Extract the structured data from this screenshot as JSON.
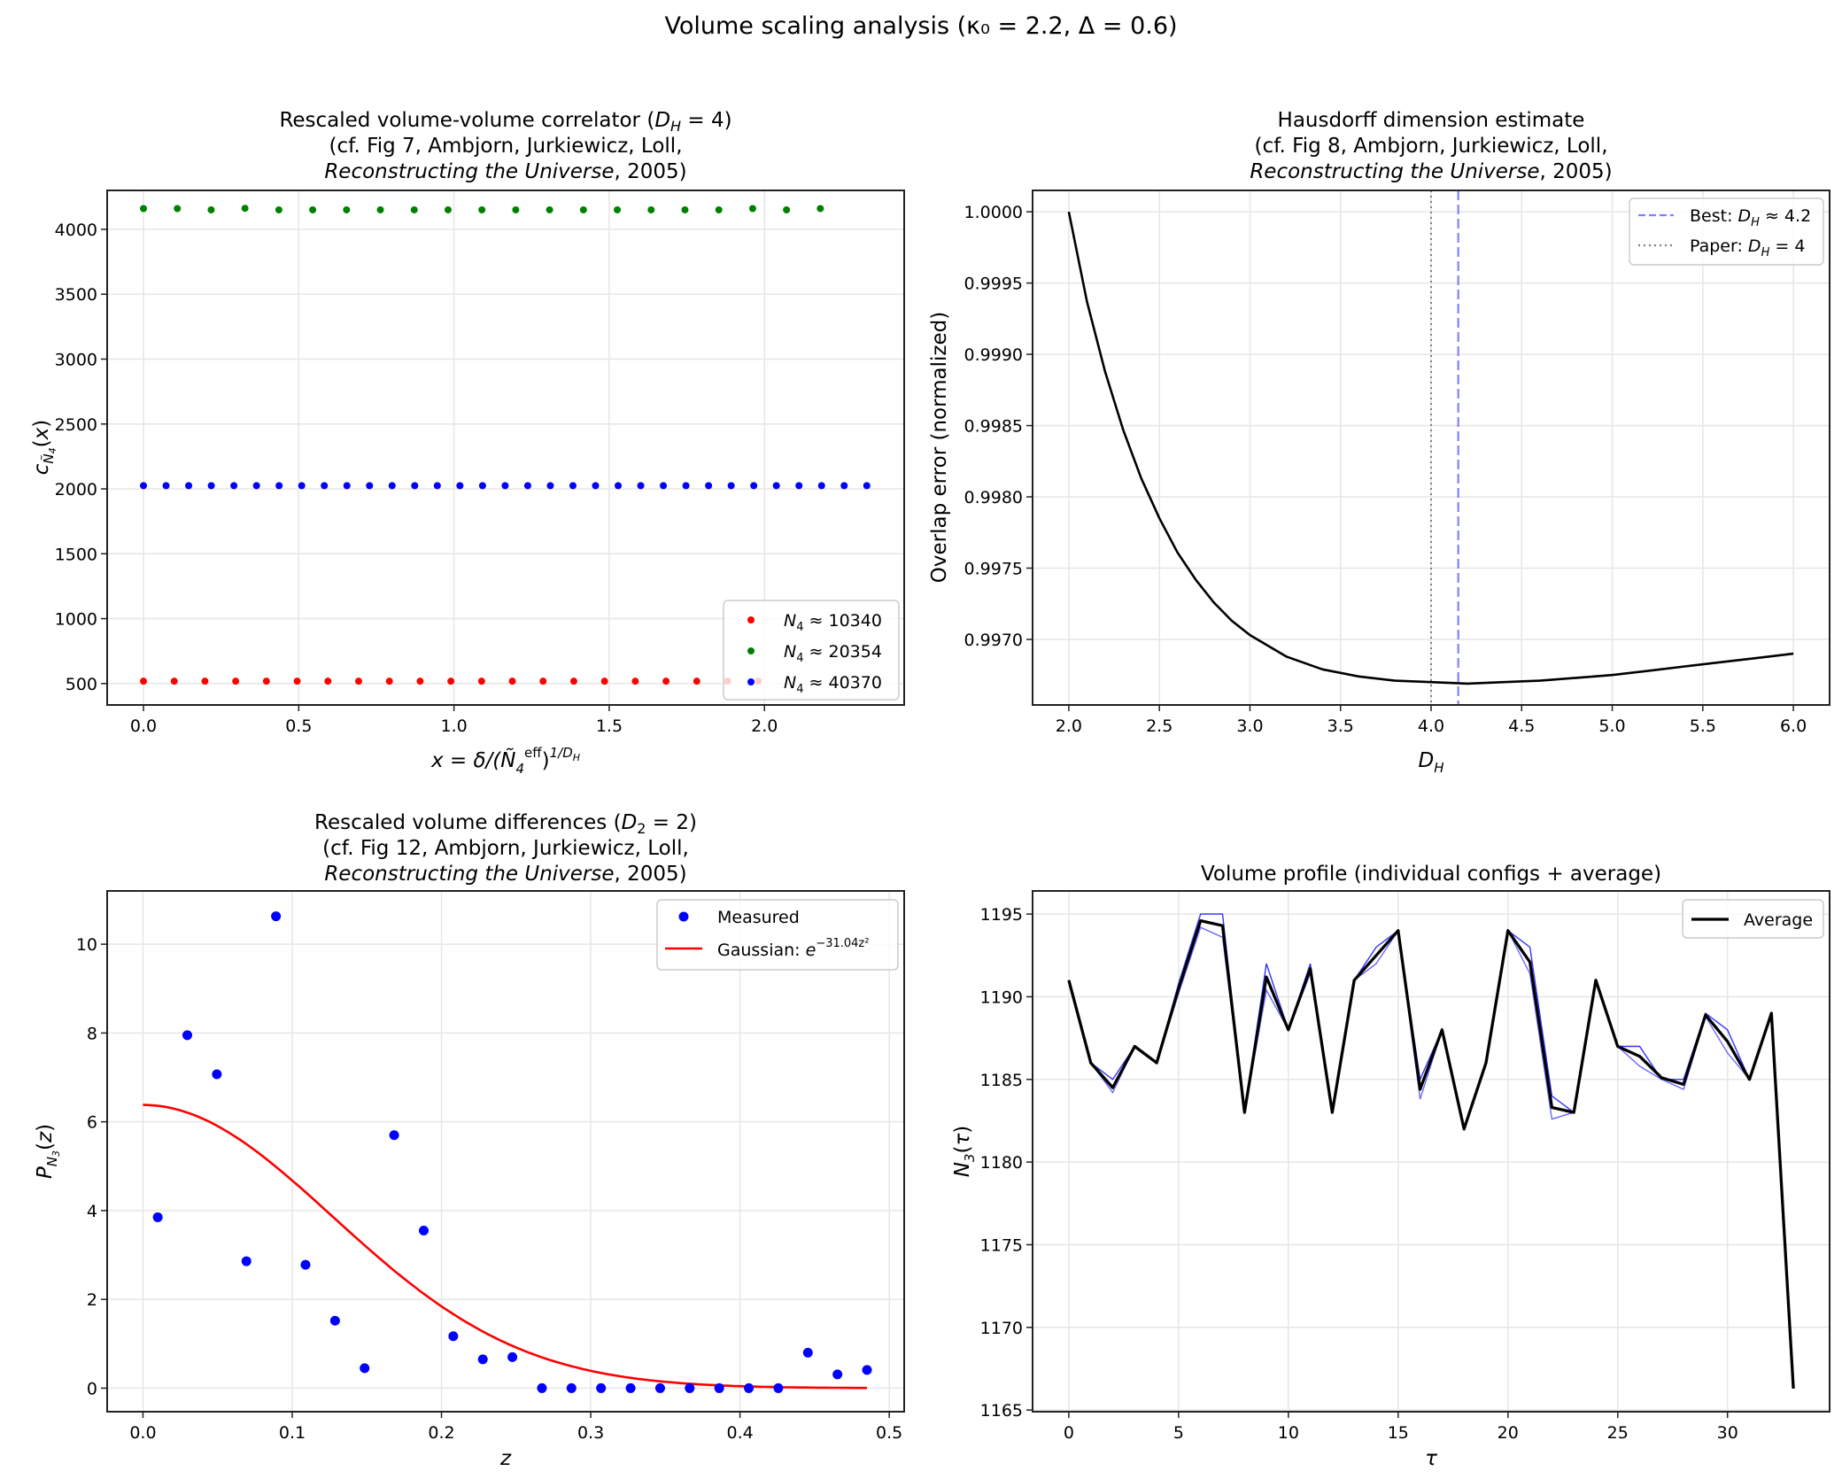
{
  "figure": {
    "suptitle": "Volume scaling analysis (κ₀ = 2.2, Δ = 0.6)"
  },
  "chart_data": [
    {
      "id": "correlator",
      "type": "scatter",
      "title_lines": [
        "Rescaled volume-volume correlator (D_H = 4)",
        "(cf. Fig 7, Ambjorn, Jurkiewicz, Loll,",
        "Reconstructing the Universe, 2005)"
      ],
      "title_parts": {
        "line1_pre": "Rescaled volume-volume correlator (",
        "line1_math": "D",
        "line1_sub": "H",
        "line1_post": " = 4)",
        "line2": "(cf. Fig 7, Ambjorn, Jurkiewicz, Loll,",
        "line3_italic": "Reconstructing the Universe",
        "line3_post": ", 2005)"
      },
      "xlabel": "x = δ/(Ñ₄^eff)^(1/D_H)",
      "ylabel": "c_Ñ₄(x)",
      "xlim": [
        -0.117,
        2.45
      ],
      "ylim": [
        335,
        4300
      ],
      "xticks": [
        0.0,
        0.5,
        1.0,
        1.5,
        2.0
      ],
      "xtick_labels": [
        "0.0",
        "0.5",
        "1.0",
        "1.5",
        "2.0"
      ],
      "yticks": [
        500,
        1000,
        1500,
        2000,
        2500,
        3000,
        3500,
        4000
      ],
      "ytick_labels": [
        "500",
        "1000",
        "1500",
        "2000",
        "2500",
        "3000",
        "3500",
        "4000"
      ],
      "grid": true,
      "legend_position": "lower-right",
      "series": [
        {
          "name": "N₄ ≈ 10340",
          "label_math": "N",
          "label_sub": "4",
          "label_value": "≈ 10340",
          "color": "#ff0000",
          "x_start": 0.0,
          "x_step": 0.099,
          "count": 21,
          "y": [
            518,
            518,
            518,
            518,
            518,
            518,
            518,
            518,
            518,
            518,
            518,
            518,
            518,
            518,
            518,
            518,
            518,
            518,
            518,
            518,
            518
          ]
        },
        {
          "name": "N₄ ≈ 20354",
          "label_math": "N",
          "label_sub": "4",
          "label_value": "≈ 20354",
          "color": "#008000",
          "x_start": 0.0,
          "x_step": 0.109,
          "count": 21,
          "y": [
            4160,
            4160,
            4150,
            4162,
            4150,
            4150,
            4150,
            4150,
            4150,
            4150,
            4150,
            4150,
            4150,
            4150,
            4150,
            4150,
            4150,
            4150,
            4160,
            4150,
            4160
          ]
        },
        {
          "name": "N₄ ≈ 40370",
          "label_math": "N",
          "label_sub": "4",
          "label_value": "≈ 40370",
          "color": "#0000ff",
          "x_start": 0.0,
          "x_step": 0.0728,
          "count": 33,
          "y": [
            2025,
            2025,
            2025,
            2025,
            2025,
            2025,
            2025,
            2025,
            2025,
            2025,
            2025,
            2025,
            2025,
            2025,
            2025,
            2025,
            2025,
            2025,
            2025,
            2025,
            2025,
            2025,
            2025,
            2025,
            2025,
            2025,
            2025,
            2025,
            2025,
            2025,
            2025,
            2025,
            2025
          ]
        }
      ]
    },
    {
      "id": "hausdorff",
      "type": "line",
      "title_parts": {
        "line1": "Hausdorff dimension estimate",
        "line2": "(cf. Fig 8, Ambjorn, Jurkiewicz, Loll,",
        "line3_italic": "Reconstructing the Universe",
        "line3_post": ", 2005)"
      },
      "xlabel": "D_H",
      "ylabel": "Overlap error (normalized)",
      "xlim": [
        1.8,
        6.2
      ],
      "ylim": [
        0.99654,
        1.00015
      ],
      "xticks": [
        2.0,
        2.5,
        3.0,
        3.5,
        4.0,
        4.5,
        5.0,
        5.5,
        6.0
      ],
      "xtick_labels": [
        "2.0",
        "2.5",
        "3.0",
        "3.5",
        "4.0",
        "4.5",
        "5.0",
        "5.5",
        "6.0"
      ],
      "yticks": [
        0.997,
        0.9975,
        0.998,
        0.9985,
        0.999,
        0.9995,
        1.0
      ],
      "ytick_labels": [
        "0.9970",
        "0.9975",
        "0.9980",
        "0.9985",
        "0.9990",
        "0.9995",
        "1.0000"
      ],
      "grid": true,
      "legend_position": "upper-right",
      "curve": {
        "color": "#000000",
        "x": [
          2.0,
          2.1,
          2.2,
          2.3,
          2.4,
          2.5,
          2.6,
          2.7,
          2.8,
          2.9,
          3.0,
          3.2,
          3.4,
          3.6,
          3.8,
          4.0,
          4.2,
          4.4,
          4.6,
          4.8,
          5.0,
          5.2,
          5.4,
          5.6,
          5.8,
          6.0
        ],
        "y": [
          1.0,
          0.99937,
          0.99888,
          0.99847,
          0.99813,
          0.99785,
          0.99761,
          0.99742,
          0.99726,
          0.99713,
          0.99703,
          0.99688,
          0.99679,
          0.99674,
          0.99671,
          0.9967,
          0.99669,
          0.9967,
          0.99671,
          0.99673,
          0.99675,
          0.99678,
          0.99681,
          0.99684,
          0.99687,
          0.9969
        ]
      },
      "vlines": [
        {
          "name": "Best: D_H ≈ 4.2",
          "label_pre": "Best: ",
          "label_math": "D",
          "label_sub": "H",
          "label_value": " ≈ 4.2",
          "x": 4.15,
          "color": "#8080ff",
          "style": "dashed"
        },
        {
          "name": "Paper: D_H = 4",
          "label_pre": "Paper: ",
          "label_math": "D",
          "label_sub": "H",
          "label_value": " = 4",
          "x": 4.0,
          "color": "#808080",
          "style": "dotted"
        }
      ]
    },
    {
      "id": "differences",
      "type": "scatter",
      "title_parts": {
        "line1_pre": "Rescaled volume differences (",
        "line1_math": "D",
        "line1_sub": "2",
        "line1_post": " = 2)",
        "line2": "(cf. Fig 12, Ambjorn, Jurkiewicz, Loll,",
        "line3_italic": "Reconstructing the Universe",
        "line3_post": ", 2005)"
      },
      "xlabel": "z",
      "ylabel": "P_N₃(z)",
      "xlim": [
        -0.024,
        0.51
      ],
      "ylim": [
        -0.53,
        11.2
      ],
      "xticks": [
        0.0,
        0.1,
        0.2,
        0.3,
        0.4,
        0.5
      ],
      "xtick_labels": [
        "0.0",
        "0.1",
        "0.2",
        "0.3",
        "0.4",
        "0.5"
      ],
      "yticks": [
        0,
        2,
        4,
        6,
        8,
        10
      ],
      "ytick_labels": [
        "0",
        "2",
        "4",
        "6",
        "8",
        "10"
      ],
      "grid": true,
      "legend_position": "upper-right",
      "measured": {
        "name": "Measured",
        "color": "#0000ff",
        "x": [
          0.0099,
          0.0297,
          0.0495,
          0.0693,
          0.0891,
          0.1089,
          0.1287,
          0.1485,
          0.1683,
          0.1881,
          0.2079,
          0.2277,
          0.2475,
          0.2673,
          0.2871,
          0.3069,
          0.3267,
          0.3465,
          0.3663,
          0.3861,
          0.4059,
          0.4257,
          0.4455,
          0.4653,
          0.4851
        ],
        "y": [
          3.85,
          7.95,
          7.07,
          2.86,
          10.63,
          2.78,
          1.52,
          0.45,
          5.7,
          3.55,
          1.17,
          0.65,
          0.7,
          0.0,
          0.0,
          0.0,
          0.0,
          0.0,
          0.0,
          0.0,
          0.0,
          0.0,
          0.8,
          0.31,
          0.41
        ]
      },
      "gaussian": {
        "name": "Gaussian: e^(-31.04 z²)",
        "label_pre": "Gaussian: e",
        "label_sup": "−31.04z²",
        "color": "#ff0000",
        "amplitude": 6.38,
        "coefficient": 31.04,
        "x_range": [
          0.0,
          0.485
        ]
      }
    },
    {
      "id": "volume-profile",
      "type": "line",
      "title": "Volume profile (individual configs + average)",
      "xlabel": "τ",
      "ylabel": "N₃(τ)",
      "xlim": [
        -1.65,
        34.65
      ],
      "ylim": [
        1164.9,
        1196.4
      ],
      "xticks": [
        0,
        5,
        10,
        15,
        20,
        25,
        30
      ],
      "xtick_labels": [
        "0",
        "5",
        "10",
        "15",
        "20",
        "25",
        "30"
      ],
      "yticks": [
        1165,
        1170,
        1175,
        1180,
        1185,
        1190,
        1195
      ],
      "ytick_labels": [
        "1165",
        "1170",
        "1175",
        "1180",
        "1185",
        "1190",
        "1195"
      ],
      "grid": true,
      "legend_position": "upper-right",
      "tau": [
        0,
        1,
        2,
        3,
        4,
        5,
        6,
        7,
        8,
        9,
        10,
        11,
        12,
        13,
        14,
        15,
        16,
        17,
        18,
        19,
        20,
        21,
        22,
        23,
        24,
        25,
        26,
        27,
        28,
        29,
        30,
        31,
        32,
        33
      ],
      "configs": [
        {
          "color": "#0000ff",
          "y": [
            1191,
            1186,
            1185,
            1187,
            1186,
            1190.8,
            1195,
            1195,
            1183,
            1192,
            1188,
            1192,
            1183,
            1191,
            1193,
            1194,
            1185,
            1188,
            1182,
            1186,
            1194,
            1193,
            1184,
            1183,
            1191,
            1187,
            1187,
            1185,
            1185,
            1189,
            1188,
            1185,
            1189,
            1166.3
          ]
        },
        {
          "color": "#4444ff",
          "y": [
            1191,
            1186,
            1184.2,
            1187,
            1186,
            1190.2,
            1194.2,
            1193.6,
            1183,
            1190.4,
            1188,
            1191.4,
            1183,
            1191,
            1192,
            1194,
            1183.8,
            1188,
            1182,
            1186,
            1194,
            1191.4,
            1182.6,
            1183,
            1191,
            1187,
            1185.8,
            1185,
            1184.4,
            1188.8,
            1186.6,
            1185,
            1189,
            1166.3
          ]
        }
      ],
      "average": {
        "name": "Average",
        "color": "#000000",
        "y": [
          1191,
          1186,
          1184.5,
          1187,
          1186,
          1190.5,
          1194.6,
          1194.3,
          1183,
          1191.2,
          1188,
          1191.7,
          1183,
          1191,
          1192.5,
          1194,
          1184.4,
          1188,
          1182,
          1186,
          1194,
          1192.1,
          1183.3,
          1183,
          1191,
          1187,
          1186.4,
          1185.1,
          1184.7,
          1188.9,
          1187.3,
          1185,
          1189,
          1166.3
        ]
      }
    }
  ]
}
